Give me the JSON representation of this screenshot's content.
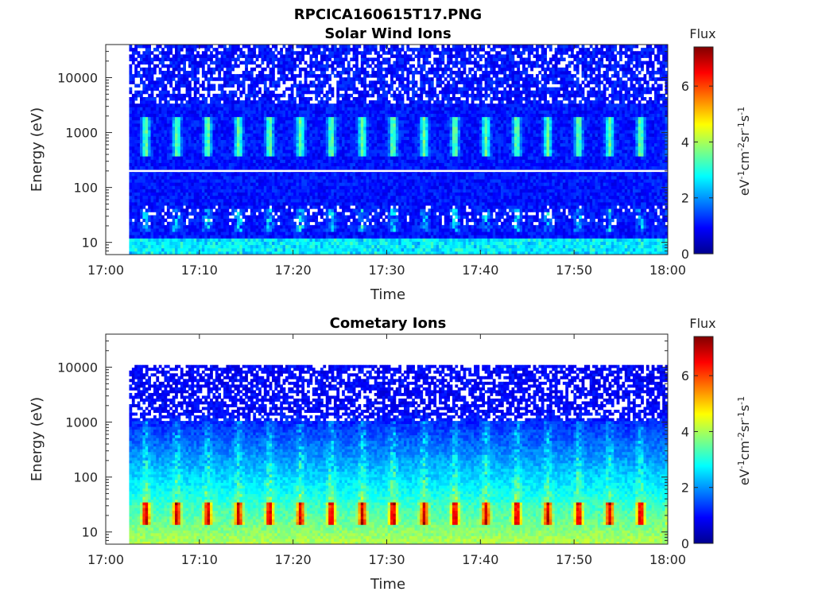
{
  "figure": {
    "filename": "RPCICA160615T17.PNG"
  },
  "chart_data": [
    {
      "type": "heatmap",
      "title": "Solar Wind Ions",
      "xlabel": "Time",
      "ylabel": "Energy (eV)",
      "x_ticks": [
        "17:00",
        "17:10",
        "17:20",
        "17:30",
        "17:40",
        "17:50",
        "18:00"
      ],
      "y_ticks": [
        "10",
        "100",
        "1000",
        "10000"
      ],
      "y_scale": "log",
      "ylim": [
        6,
        40000
      ],
      "xlim": [
        "17:00",
        "18:00"
      ],
      "data_start": "17:02.5",
      "colorbar": {
        "label": "Flux",
        "unit": "eV-1cm-2sr-1s-1",
        "ticks": [
          "0",
          "2",
          "4",
          "6"
        ],
        "range": [
          0,
          7.4
        ]
      },
      "notes": "Peaks near ~800 eV at ~3.3 min intervals; enhanced flux near 20 eV"
    },
    {
      "type": "heatmap",
      "title": "Cometary Ions",
      "xlabel": "Time",
      "ylabel": "Energy (eV)",
      "x_ticks": [
        "17:00",
        "17:10",
        "17:20",
        "17:30",
        "17:40",
        "17:50",
        "18:00"
      ],
      "y_ticks": [
        "10",
        "100",
        "1000",
        "10000"
      ],
      "y_scale": "log",
      "ylim": [
        6,
        40000
      ],
      "xlim": [
        "17:00",
        "18:00"
      ],
      "data_start": "17:02.5",
      "colorbar": {
        "label": "Flux",
        "unit": "eV-1cm-2sr-1s-1",
        "ticks": [
          "0",
          "2",
          "4",
          "6"
        ],
        "range": [
          0,
          7.4
        ]
      },
      "notes": "Strong flux at ~20 eV (up to ~6) pulsing every ~3.3 min; decreasing upward"
    }
  ]
}
